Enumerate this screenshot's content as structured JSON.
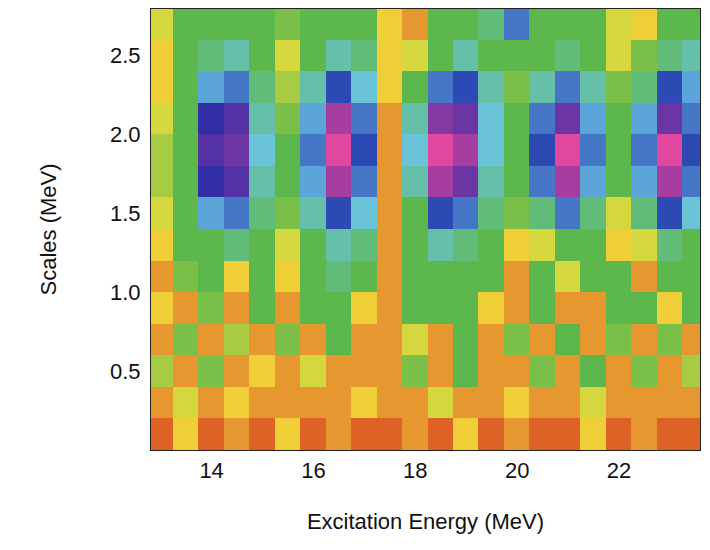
{
  "chart_data": {
    "type": "heatmap",
    "xlabel": "Excitation Energy (MeV)",
    "ylabel": "Scales (MeV)",
    "xlim": [
      12.8,
      23.6
    ],
    "xticks": [
      14,
      16,
      18,
      20,
      22
    ],
    "ylim": [
      0,
      2.8
    ],
    "yticks": [
      0.5,
      1,
      1.5,
      2,
      2.5
    ],
    "zlim": [
      0,
      1
    ],
    "x": [
      13,
      13.5,
      14,
      14.5,
      15,
      15.5,
      16,
      16.5,
      17,
      17.5,
      18,
      18.5,
      19,
      19.5,
      20,
      20.5,
      21,
      21.5,
      22,
      22.5,
      23,
      23.5
    ],
    "y": [
      0.1,
      0.3,
      0.5,
      0.7,
      0.9,
      1.1,
      1.3,
      1.5,
      1.7,
      1.9,
      2.1,
      2.3,
      2.5,
      2.7
    ],
    "values": [
      [
        0.05,
        0.15,
        0.05,
        0.1,
        0.05,
        0.15,
        0.05,
        0.1,
        0.05,
        0.05,
        0.1,
        0.05,
        0.15,
        0.05,
        0.1,
        0.05,
        0.05,
        0.15,
        0.05,
        0.1,
        0.05,
        0.05
      ],
      [
        0.1,
        0.2,
        0.1,
        0.15,
        0.1,
        0.1,
        0.1,
        0.1,
        0.15,
        0.1,
        0.1,
        0.2,
        0.1,
        0.1,
        0.15,
        0.1,
        0.1,
        0.2,
        0.1,
        0.1,
        0.1,
        0.1
      ],
      [
        0.25,
        0.1,
        0.3,
        0.1,
        0.15,
        0.1,
        0.2,
        0.1,
        0.1,
        0.1,
        0.3,
        0.1,
        0.35,
        0.1,
        0.1,
        0.3,
        0.1,
        0.35,
        0.1,
        0.3,
        0.1,
        0.25
      ],
      [
        0.1,
        0.3,
        0.1,
        0.25,
        0.1,
        0.3,
        0.1,
        0.4,
        0.1,
        0.1,
        0.2,
        0.1,
        0.35,
        0.1,
        0.3,
        0.1,
        0.35,
        0.1,
        0.3,
        0.1,
        0.3,
        0.1
      ],
      [
        0.15,
        0.1,
        0.3,
        0.1,
        0.35,
        0.1,
        0.45,
        0.5,
        0.15,
        0.1,
        0.35,
        0.45,
        0.4,
        0.15,
        0.1,
        0.4,
        0.1,
        0.1,
        0.35,
        0.4,
        0.15,
        0.35
      ],
      [
        0.1,
        0.3,
        0.35,
        0.15,
        0.4,
        0.15,
        0.5,
        0.55,
        0.45,
        0.1,
        0.4,
        0.5,
        0.5,
        0.4,
        0.1,
        0.35,
        0.2,
        0.4,
        0.35,
        0.1,
        0.4,
        0.45
      ],
      [
        0.15,
        0.35,
        0.5,
        0.55,
        0.5,
        0.2,
        0.5,
        0.6,
        0.55,
        0.1,
        0.45,
        0.6,
        0.55,
        0.5,
        0.15,
        0.2,
        0.5,
        0.45,
        0.15,
        0.2,
        0.55,
        0.5
      ],
      [
        0.2,
        0.45,
        0.7,
        0.75,
        0.55,
        0.3,
        0.6,
        0.8,
        0.65,
        0.1,
        0.5,
        0.8,
        0.75,
        0.55,
        0.3,
        0.55,
        0.75,
        0.55,
        0.2,
        0.55,
        0.8,
        0.65
      ],
      [
        0.25,
        0.5,
        0.85,
        0.88,
        0.6,
        0.35,
        0.7,
        0.95,
        0.75,
        0.1,
        0.6,
        0.95,
        0.9,
        0.6,
        0.35,
        0.75,
        0.95,
        0.7,
        0.35,
        0.7,
        0.95,
        0.75
      ],
      [
        0.25,
        0.5,
        0.88,
        0.9,
        0.65,
        0.35,
        0.75,
        1.0,
        0.8,
        0.1,
        0.65,
        1.0,
        0.95,
        0.65,
        0.4,
        0.8,
        1.0,
        0.75,
        0.4,
        0.75,
        1.0,
        0.8
      ],
      [
        0.2,
        0.5,
        0.85,
        0.88,
        0.6,
        0.3,
        0.7,
        0.95,
        0.75,
        0.1,
        0.6,
        0.92,
        0.9,
        0.65,
        0.35,
        0.75,
        0.9,
        0.7,
        0.35,
        0.7,
        0.9,
        0.75
      ],
      [
        0.15,
        0.45,
        0.7,
        0.75,
        0.55,
        0.25,
        0.6,
        0.8,
        0.65,
        0.15,
        0.5,
        0.75,
        0.8,
        0.6,
        0.3,
        0.6,
        0.75,
        0.6,
        0.3,
        0.55,
        0.8,
        0.7
      ],
      [
        0.15,
        0.4,
        0.55,
        0.6,
        0.5,
        0.2,
        0.5,
        0.6,
        0.55,
        0.15,
        0.2,
        0.5,
        0.6,
        0.5,
        0.4,
        0.5,
        0.55,
        0.45,
        0.2,
        0.3,
        0.55,
        0.6
      ],
      [
        0.2,
        0.35,
        0.45,
        0.5,
        0.45,
        0.3,
        0.4,
        0.5,
        0.45,
        0.15,
        0.1,
        0.45,
        0.5,
        0.55,
        0.75,
        0.5,
        0.45,
        0.35,
        0.2,
        0.15,
        0.4,
        0.5
      ]
    ]
  }
}
